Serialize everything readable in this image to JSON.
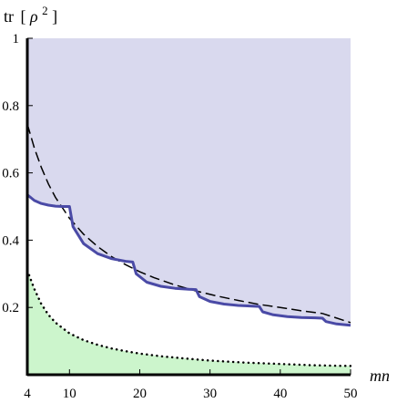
{
  "chart_data": {
    "type": "area",
    "xlabel": "mn",
    "ylabel_prefix": "tr",
    "ylabel_var": "ρ",
    "ylabel_exp": "2",
    "xlim": [
      4,
      50
    ],
    "ylim": [
      0,
      1
    ],
    "x_ticks": [
      4,
      10,
      20,
      30,
      40,
      50
    ],
    "y_ticks": [
      0.2,
      0.4,
      0.6,
      0.8,
      1
    ],
    "y_tick_labels": [
      "0.2",
      "0.4",
      "0.6",
      "0.8",
      "1"
    ],
    "series": [
      {
        "style": "solid-blue",
        "color": "#4a4aa6",
        "x": [
          4,
          5,
          6,
          7,
          8,
          9,
          10,
          10.5,
          12,
          14,
          16,
          18,
          19,
          19.5,
          21,
          23,
          25,
          27,
          28,
          28.5,
          30,
          32,
          34,
          36,
          37,
          37.5,
          39,
          41,
          43,
          45,
          46,
          46.5,
          48,
          50
        ],
        "y": [
          0.535,
          0.518,
          0.509,
          0.504,
          0.501,
          0.5,
          0.5,
          0.44,
          0.39,
          0.36,
          0.345,
          0.337,
          0.335,
          0.3,
          0.275,
          0.263,
          0.257,
          0.254,
          0.253,
          0.232,
          0.218,
          0.21,
          0.206,
          0.204,
          0.203,
          0.187,
          0.178,
          0.173,
          0.17,
          0.169,
          0.168,
          0.158,
          0.151,
          0.147
        ]
      },
      {
        "style": "dashed-black",
        "color": "#000000",
        "x": [
          4,
          5,
          6,
          7,
          8,
          10,
          12,
          14,
          16,
          18,
          20,
          22,
          25,
          28,
          31,
          34,
          37,
          40,
          43,
          46,
          50
        ],
        "y": [
          0.745,
          0.674,
          0.616,
          0.567,
          0.527,
          0.465,
          0.418,
          0.381,
          0.351,
          0.327,
          0.306,
          0.289,
          0.267,
          0.249,
          0.234,
          0.221,
          0.209,
          0.2,
          0.19,
          0.182,
          0.155
        ]
      },
      {
        "style": "dotted-black",
        "color": "#000000",
        "x": [
          4,
          5,
          6,
          7,
          8,
          10,
          12,
          14,
          16,
          18,
          20,
          23,
          26,
          30,
          35,
          40,
          45,
          50
        ],
        "y": [
          0.31,
          0.255,
          0.21,
          0.178,
          0.155,
          0.123,
          0.103,
          0.089,
          0.078,
          0.07,
          0.063,
          0.055,
          0.049,
          0.042,
          0.036,
          0.032,
          0.028,
          0.026
        ]
      }
    ],
    "fills": [
      {
        "region": "between-upper-curve-and-1",
        "color": "#d9d9ee"
      },
      {
        "region": "below-dotted-curve",
        "color": "#ccf5cc"
      }
    ]
  }
}
